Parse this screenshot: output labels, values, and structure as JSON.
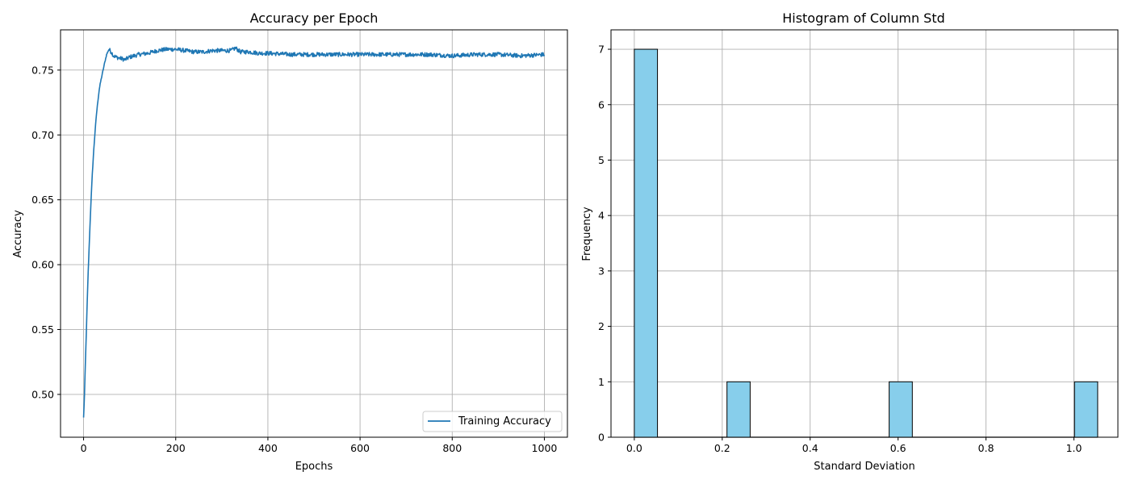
{
  "chart_data": [
    {
      "type": "line",
      "title": "Accuracy per Epoch",
      "xlabel": "Epochs",
      "ylabel": "Accuracy",
      "xlim": [
        -50,
        1050
      ],
      "ylim": [
        0.467,
        0.781
      ],
      "xticks": [
        0,
        200,
        400,
        600,
        800,
        1000
      ],
      "xtick_labels": [
        "0",
        "200",
        "400",
        "600",
        "800",
        "1000"
      ],
      "yticks": [
        0.5,
        0.55,
        0.6,
        0.65,
        0.7,
        0.75
      ],
      "ytick_labels": [
        "0.50",
        "0.55",
        "0.60",
        "0.65",
        "0.70",
        "0.75"
      ],
      "grid": true,
      "legend_position": "lower-right",
      "series": [
        {
          "name": "Training Accuracy",
          "color": "#1f77b4",
          "x": [
            0,
            2,
            4,
            6,
            8,
            10,
            13,
            16,
            19,
            22,
            25,
            28,
            31,
            34,
            37,
            40,
            43,
            46,
            50,
            55,
            60,
            65,
            70,
            80,
            90,
            100,
            120,
            140,
            160,
            180,
            200,
            220,
            240,
            260,
            280,
            300,
            320,
            330,
            340,
            360,
            380,
            400,
            450,
            500,
            550,
            600,
            650,
            700,
            750,
            800,
            850,
            900,
            950,
            1000
          ],
          "y": [
            0.482,
            0.5,
            0.525,
            0.548,
            0.572,
            0.594,
            0.622,
            0.648,
            0.67,
            0.688,
            0.703,
            0.716,
            0.726,
            0.735,
            0.741,
            0.746,
            0.751,
            0.756,
            0.762,
            0.766,
            0.764,
            0.761,
            0.76,
            0.759,
            0.758,
            0.76,
            0.762,
            0.763,
            0.765,
            0.766,
            0.766,
            0.765,
            0.764,
            0.764,
            0.765,
            0.765,
            0.765,
            0.767,
            0.764,
            0.764,
            0.763,
            0.763,
            0.762,
            0.762,
            0.762,
            0.762,
            0.762,
            0.762,
            0.762,
            0.761,
            0.762,
            0.762,
            0.761,
            0.762
          ]
        }
      ]
    },
    {
      "type": "bar",
      "title": "Histogram of Column Std",
      "xlabel": "Standard Deviation",
      "ylabel": "Frequency",
      "xlim": [
        -0.053,
        1.1
      ],
      "ylim": [
        0,
        7.35
      ],
      "xticks": [
        0.0,
        0.2,
        0.4,
        0.6,
        0.8,
        1.0
      ],
      "xtick_labels": [
        "0.0",
        "0.2",
        "0.4",
        "0.6",
        "0.8",
        "1.0"
      ],
      "yticks": [
        0,
        1,
        2,
        3,
        4,
        5,
        6,
        7
      ],
      "ytick_labels": [
        "0",
        "1",
        "2",
        "3",
        "4",
        "5",
        "6",
        "7"
      ],
      "grid": true,
      "bar_color": "#87ceeb",
      "edge_color": "#000000",
      "bin_width": 0.0527,
      "bins": [
        {
          "x0": 0.0,
          "count": 7
        },
        {
          "x0": 0.2108,
          "count": 1
        },
        {
          "x0": 0.5797,
          "count": 1
        },
        {
          "x0": 1.0013,
          "count": 1
        }
      ]
    }
  ]
}
